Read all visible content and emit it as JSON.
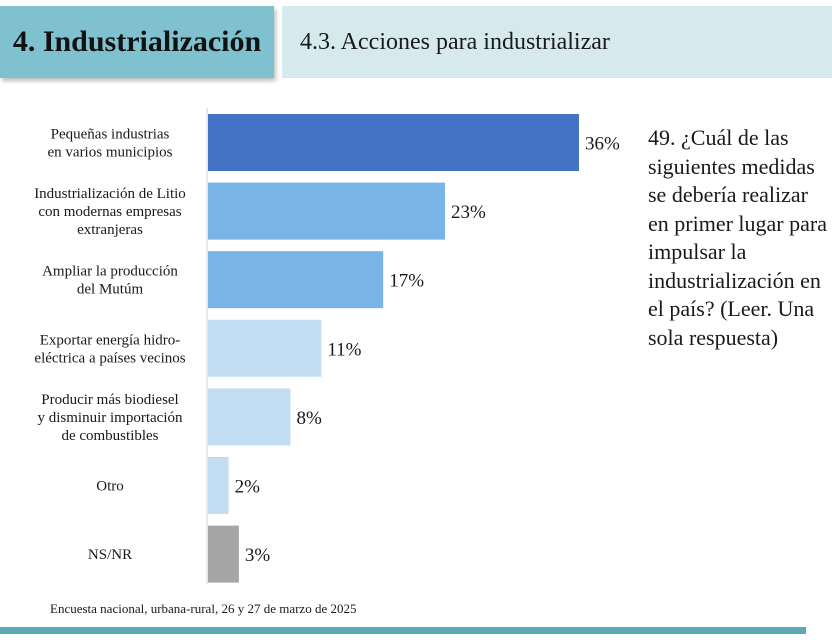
{
  "header": {
    "section_title": "4. Industrialización",
    "subsection_title": "4.3. Acciones para industrializar"
  },
  "question": "49. ¿Cuál de las siguientes medidas se debería realizar en primer lugar para impulsar la industrialización en el país? (Leer. Una sola respuesta)",
  "footnote": "Encuesta nacional, urbana-rural, 26 y 27 de marzo de 2025",
  "chart_data": {
    "type": "bar",
    "orientation": "horizontal",
    "categories": [
      [
        "Pequeñas industrias",
        "en varios municipios"
      ],
      [
        "Industrialización de Litio",
        "con modernas empresas",
        "extranjeras"
      ],
      [
        "Ampliar la producción",
        "del Mutúm"
      ],
      [
        "Exportar energía hidro-",
        "eléctrica a países vecinos"
      ],
      [
        "Producir más biodiesel",
        "y disminuir importación",
        "de combustibles"
      ],
      [
        "Otro"
      ],
      [
        "NS/NR"
      ]
    ],
    "values": [
      36,
      23,
      17,
      11,
      8,
      2,
      3
    ],
    "value_labels": [
      "36%",
      "23%",
      "17%",
      "11%",
      "8%",
      "2%",
      "3%"
    ],
    "bar_colors": [
      "#4472c4",
      "#78b4e5",
      "#78b4e5",
      "#c3ddf3",
      "#c3ddf3",
      "#c3ddf3",
      "#a6a6a6"
    ],
    "xlim": [
      0,
      36
    ],
    "grid": false,
    "axis_line": true
  }
}
